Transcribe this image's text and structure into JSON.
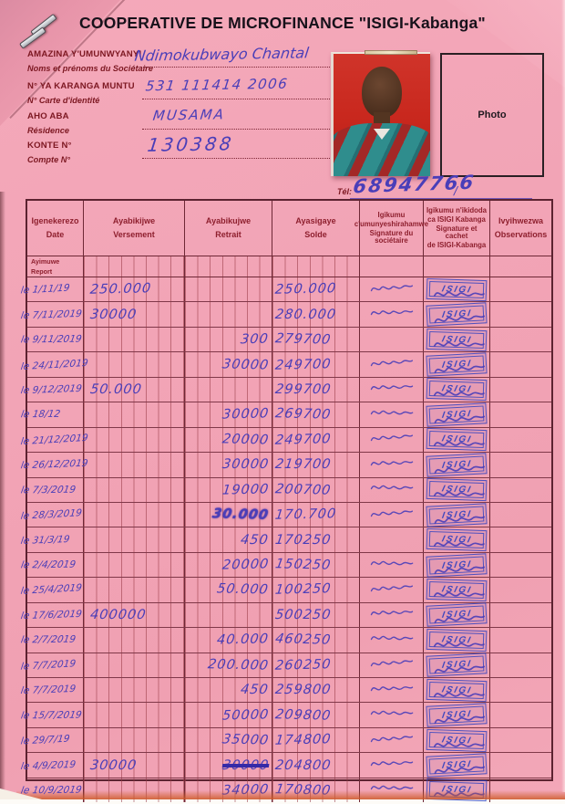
{
  "header": {
    "title": "COOPERATIVE DE MICROFINANCE \"ISIGI-Kabanga\""
  },
  "member": {
    "fields": [
      {
        "label_rn": "AMAZINA Y'UMUNWYANYI",
        "label_fr": "Noms et prénoms du Sociétaire",
        "value": "Ndimokubwayo Chantal"
      },
      {
        "label_rn": "N° YA KARANGA MUNTU",
        "label_fr": "N° Carte d'identité",
        "value": "531 111414 2006"
      },
      {
        "label_rn": "AHO ABA",
        "label_fr": "Résidence",
        "value": "MUSAMA"
      },
      {
        "label_rn": "KONTE N°",
        "label_fr": "Compte N°",
        "value": "130388"
      }
    ],
    "tel_label": "Tél:",
    "tel_value": "68947766",
    "photo_label": "Photo"
  },
  "table": {
    "columns": [
      {
        "lines": [
          "Igenekerezo",
          "Date"
        ]
      },
      {
        "lines": [
          "Ayabikijwe",
          "Versement"
        ]
      },
      {
        "lines": [
          "Ayabikujwe",
          "Retrait"
        ]
      },
      {
        "lines": [
          "Ayasigaye",
          "Solde"
        ]
      },
      {
        "lines": [
          "Igikumu",
          "c'umunyeshirahamwe",
          "Signature du sociétaire"
        ]
      },
      {
        "lines": [
          "Igikumu n'ikidoda",
          "ca ISIGI Kabanga",
          "Signature et cachet",
          "de ISIGI-Kabanga"
        ]
      },
      {
        "lines": [
          "Ivyihwezwa",
          "Observations"
        ]
      }
    ],
    "subheader": {
      "lines": [
        "Ayimuwe",
        "Report"
      ]
    },
    "stamp_text": "ISIGI",
    "rows": [
      {
        "date": "le 1/11/19",
        "deposit": "250.000",
        "withdrawal": "",
        "balance": "250.000",
        "member_signature": true,
        "stamp": true
      },
      {
        "date": "le 7/11/2019",
        "deposit": "30000",
        "withdrawal": "",
        "balance": "280.000",
        "member_signature": true,
        "stamp": true
      },
      {
        "date": "le 9/11/2019",
        "deposit": "",
        "withdrawal": "300",
        "balance": "279700",
        "member_signature": false,
        "stamp": true
      },
      {
        "date": "le 24/11/2019",
        "deposit": "",
        "withdrawal": "30000",
        "balance": "249700",
        "member_signature": true,
        "stamp": true
      },
      {
        "date": "le 9/12/2019",
        "deposit": "50.000",
        "withdrawal": "",
        "balance": "299700",
        "member_signature": true,
        "stamp": true
      },
      {
        "date": "le 18/12",
        "deposit": "",
        "withdrawal": "30000",
        "balance": "269700",
        "member_signature": true,
        "stamp": true
      },
      {
        "date": "le 21/12/2019",
        "deposit": "",
        "withdrawal": "20000",
        "balance": "249700",
        "member_signature": true,
        "stamp": true
      },
      {
        "date": "le 26/12/2019",
        "deposit": "",
        "withdrawal": "30000",
        "balance": "219700",
        "member_signature": true,
        "stamp": true
      },
      {
        "date": "le 7/3/2019",
        "deposit": "",
        "withdrawal": "19000",
        "balance": "200700",
        "member_signature": true,
        "stamp": true
      },
      {
        "date": "le 28/3/2019",
        "deposit": "",
        "withdrawal": "30.000",
        "balance": "170.700",
        "member_signature": true,
        "stamp": true,
        "withdrawal_heavy": true
      },
      {
        "date": "le 31/3/19",
        "deposit": "",
        "withdrawal": "450",
        "balance": "170250",
        "member_signature": false,
        "stamp": true
      },
      {
        "date": "le 2/4/2019",
        "deposit": "",
        "withdrawal": "20000",
        "balance": "150250",
        "member_signature": true,
        "stamp": true
      },
      {
        "date": "le 25/4/2019",
        "deposit": "",
        "withdrawal": "50.000",
        "balance": "100250",
        "member_signature": true,
        "stamp": true
      },
      {
        "date": "le 17/6/2019",
        "deposit": "400000",
        "withdrawal": "",
        "balance": "500250",
        "member_signature": true,
        "stamp": true
      },
      {
        "date": "le 2/7/2019",
        "deposit": "",
        "withdrawal": "40.000",
        "balance": "460250",
        "member_signature": true,
        "stamp": true
      },
      {
        "date": "le 7/7/2019",
        "deposit": "",
        "withdrawal": "200.000",
        "balance": "260250",
        "member_signature": true,
        "stamp": true
      },
      {
        "date": "le 7/7/2019",
        "deposit": "",
        "withdrawal": "450",
        "balance": "259800",
        "member_signature": true,
        "stamp": true
      },
      {
        "date": "le 15/7/2019",
        "deposit": "",
        "withdrawal": "50000",
        "balance": "209800",
        "member_signature": true,
        "stamp": true
      },
      {
        "date": "le 29/7/19",
        "deposit": "",
        "withdrawal": "35000",
        "balance": "174800",
        "member_signature": true,
        "stamp": true
      },
      {
        "date": "le 4/9/2019",
        "deposit": "30000",
        "withdrawal": "30000",
        "balance": "204800",
        "member_signature": true,
        "stamp": true,
        "withdrawal_struck": true
      },
      {
        "date": "le 10/9/2019",
        "deposit": "",
        "withdrawal": "34000",
        "balance": "170800",
        "member_signature": true,
        "stamp": true
      }
    ]
  },
  "colors": {
    "page_pink": "#f2a4b6",
    "grid": "#6e2836",
    "header_red": "#8e1f2e",
    "label_maroon": "#7d1822",
    "ink": "#4a3eb8",
    "stamp_blue": "#2b3ec0",
    "photo_red": "#c8271d"
  }
}
